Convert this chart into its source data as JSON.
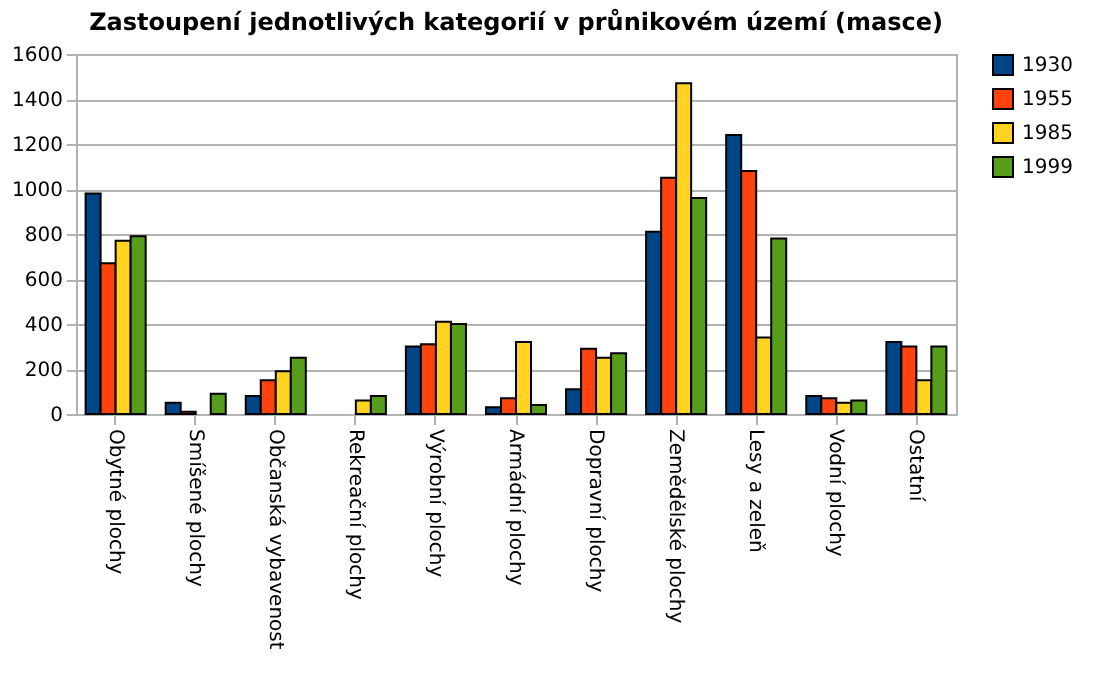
{
  "chart_data": {
    "type": "bar",
    "title": "Zastoupení jednotlivých kategorií v průnikovém území (masce)",
    "categories": [
      "Obytné plochy",
      "Smíšené plochy",
      "Občanská vybavenost",
      "Rekreační plochy",
      "Výrobní plochy",
      "Armádní plochy",
      "Dopravní plochy",
      "Zemědělské plochy",
      "Lesy a zeleň",
      "Vodní plochy",
      "Ostatní"
    ],
    "series": [
      {
        "name": "1930",
        "color": "#004586",
        "values": [
          980,
          50,
          80,
          null,
          300,
          30,
          110,
          810,
          1240,
          80,
          320
        ]
      },
      {
        "name": "1955",
        "color": "#ff420e",
        "values": [
          670,
          10,
          150,
          null,
          310,
          70,
          290,
          1050,
          1080,
          70,
          300
        ]
      },
      {
        "name": "1985",
        "color": "#ffd320",
        "values": [
          770,
          null,
          190,
          60,
          410,
          320,
          250,
          1470,
          340,
          50,
          150
        ]
      },
      {
        "name": "1999",
        "color": "#579d1c",
        "values": [
          790,
          90,
          250,
          80,
          400,
          40,
          270,
          960,
          780,
          60,
          300
        ]
      }
    ],
    "ylim": [
      0,
      1600
    ],
    "yticks": [
      0,
      200,
      400,
      600,
      800,
      1000,
      1200,
      1400,
      1600
    ],
    "grid": "y",
    "legend": "right"
  }
}
